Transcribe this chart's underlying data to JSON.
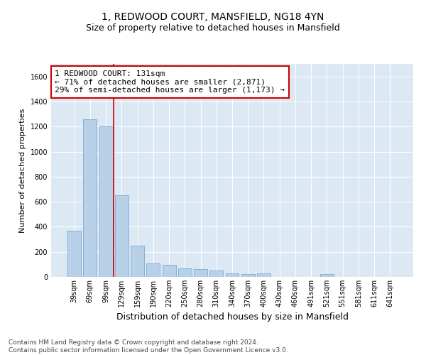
{
  "title1": "1, REDWOOD COURT, MANSFIELD, NG18 4YN",
  "title2": "Size of property relative to detached houses in Mansfield",
  "xlabel": "Distribution of detached houses by size in Mansfield",
  "ylabel": "Number of detached properties",
  "categories": [
    "39sqm",
    "69sqm",
    "99sqm",
    "129sqm",
    "159sqm",
    "190sqm",
    "220sqm",
    "250sqm",
    "280sqm",
    "310sqm",
    "340sqm",
    "370sqm",
    "400sqm",
    "430sqm",
    "460sqm",
    "491sqm",
    "521sqm",
    "551sqm",
    "581sqm",
    "611sqm",
    "641sqm"
  ],
  "values": [
    370,
    1260,
    1200,
    650,
    250,
    110,
    95,
    70,
    65,
    50,
    30,
    25,
    30,
    0,
    0,
    0,
    20,
    0,
    0,
    0,
    0
  ],
  "bar_color": "#b8d0e8",
  "bar_edge_color": "#7aabcf",
  "property_line_x": 2.5,
  "annotation_text": "1 REDWOOD COURT: 131sqm\n← 71% of detached houses are smaller (2,871)\n29% of semi-detached houses are larger (1,173) →",
  "annotation_box_color": "#ffffff",
  "annotation_box_edge_color": "#cc0000",
  "vline_color": "#cc0000",
  "ylim": [
    0,
    1700
  ],
  "yticks": [
    0,
    200,
    400,
    600,
    800,
    1000,
    1200,
    1400,
    1600
  ],
  "background_color": "#dce9f5",
  "footer_text": "Contains HM Land Registry data © Crown copyright and database right 2024.\nContains public sector information licensed under the Open Government Licence v3.0.",
  "title_fontsize": 10,
  "subtitle_fontsize": 9,
  "axis_label_fontsize": 8,
  "tick_fontsize": 7,
  "annotation_fontsize": 8,
  "footer_fontsize": 6.5
}
